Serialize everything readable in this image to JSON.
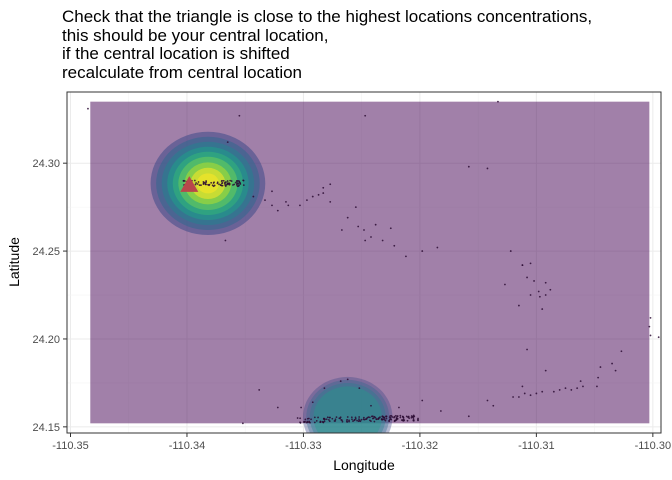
{
  "chart_data": {
    "type": "scatter",
    "title_lines": [
      "Check that the triangle is close to the highest locations concentrations,",
      "this should be your central location,",
      "if the central location is shifted",
      "recalculate from central location"
    ],
    "xlabel": "Longitude",
    "ylabel": "Latitude",
    "xlim": [
      -110.3503,
      -110.2993
    ],
    "ylim": [
      24.1465,
      24.3405
    ],
    "xticks": [
      -110.35,
      -110.34,
      -110.33,
      -110.32,
      -110.31,
      -110.3
    ],
    "xtick_labels": [
      "-110.35",
      "-110.34",
      "-110.33",
      "-110.32",
      "-110.31",
      "-110.30"
    ],
    "yticks": [
      24.15,
      24.2,
      24.25,
      24.3
    ],
    "ytick_labels": [
      "24.15",
      "24.20",
      "24.25",
      "24.30"
    ],
    "grid": true,
    "density_extent": {
      "x": [
        -110.3483,
        -110.3003
      ],
      "y": [
        24.152,
        24.335
      ]
    },
    "density_peaks": [
      {
        "x": -110.3382,
        "y": 24.2885,
        "strength": 1.0
      },
      {
        "x": -110.3262,
        "y": 24.1555,
        "strength": 0.45
      }
    ],
    "central_location": {
      "x": -110.3398,
      "y": 24.2875
    },
    "points": [
      [
        -110.3485,
        24.331
      ],
      [
        -110.3355,
        24.327
      ],
      [
        -110.3247,
        24.327
      ],
      [
        -110.3133,
        24.335
      ],
      [
        -110.3365,
        24.312
      ],
      [
        -110.3367,
        24.256
      ],
      [
        -110.3343,
        24.281
      ],
      [
        -110.3333,
        24.279
      ],
      [
        -110.3327,
        24.276
      ],
      [
        -110.3322,
        24.273
      ],
      [
        -110.3315,
        24.278
      ],
      [
        -110.3313,
        24.276
      ],
      [
        -110.3303,
        24.276
      ],
      [
        -110.3297,
        24.279
      ],
      [
        -110.3292,
        24.281
      ],
      [
        -110.3287,
        24.282
      ],
      [
        -110.3283,
        24.283
      ],
      [
        -110.3277,
        24.288
      ],
      [
        -110.3283,
        24.286
      ],
      [
        -110.3277,
        24.278
      ],
      [
        -110.3327,
        24.284
      ],
      [
        -110.3267,
        24.262
      ],
      [
        -110.3262,
        24.269
      ],
      [
        -110.3255,
        24.275
      ],
      [
        -110.3253,
        24.264
      ],
      [
        -110.3248,
        24.262
      ],
      [
        -110.3247,
        24.256
      ],
      [
        -110.3242,
        24.258
      ],
      [
        -110.3238,
        24.265
      ],
      [
        -110.3232,
        24.256
      ],
      [
        -110.3225,
        24.263
      ],
      [
        -110.3222,
        24.253
      ],
      [
        -110.3212,
        24.247
      ],
      [
        -110.3198,
        24.25
      ],
      [
        -110.3185,
        24.252
      ],
      [
        -110.3127,
        24.231
      ],
      [
        -110.3122,
        24.25
      ],
      [
        -110.3112,
        24.242
      ],
      [
        -110.3108,
        24.235
      ],
      [
        -110.3102,
        24.233
      ],
      [
        -110.3098,
        24.227
      ],
      [
        -110.3097,
        24.224
      ],
      [
        -110.3105,
        24.225
      ],
      [
        -110.3095,
        24.217
      ],
      [
        -110.3115,
        24.219
      ],
      [
        -110.3112,
        24.242
      ],
      [
        -110.3105,
        24.243
      ],
      [
        -110.3092,
        24.232
      ],
      [
        -110.3092,
        24.225
      ],
      [
        -110.3088,
        24.228
      ],
      [
        -110.3158,
        24.298
      ],
      [
        -110.3142,
        24.297
      ],
      [
        -110.3002,
        24.212
      ],
      [
        -110.3003,
        24.207
      ],
      [
        -110.3002,
        24.202
      ],
      [
        -110.2995,
        24.201
      ],
      [
        -110.3027,
        24.193
      ],
      [
        -110.3035,
        24.186
      ],
      [
        -110.3045,
        24.184
      ],
      [
        -110.3032,
        24.182
      ],
      [
        -110.3047,
        24.178
      ],
      [
        -110.3062,
        24.176
      ],
      [
        -110.3048,
        24.173
      ],
      [
        -110.3092,
        24.182
      ],
      [
        -110.3108,
        24.194
      ],
      [
        -110.3112,
        24.173
      ],
      [
        -110.3137,
        24.162
      ],
      [
        -110.3158,
        24.156
      ],
      [
        -110.3182,
        24.159
      ],
      [
        -110.3198,
        24.165
      ],
      [
        -110.3218,
        24.161
      ],
      [
        -110.3232,
        24.156
      ],
      [
        -110.3242,
        24.162
      ],
      [
        -110.3252,
        24.172
      ],
      [
        -110.3262,
        24.177
      ],
      [
        -110.3268,
        24.176
      ],
      [
        -110.3282,
        24.172
      ],
      [
        -110.3292,
        24.164
      ],
      [
        -110.3302,
        24.161
      ],
      [
        -110.3322,
        24.161
      ],
      [
        -110.3338,
        24.171
      ],
      [
        -110.3352,
        24.152
      ],
      [
        -110.3142,
        24.165
      ],
      [
        -110.3305,
        24.155
      ],
      [
        -110.3085,
        24.17
      ],
      [
        -110.308,
        24.171
      ],
      [
        -110.3075,
        24.172
      ],
      [
        -110.307,
        24.171
      ],
      [
        -110.3065,
        24.172
      ],
      [
        -110.306,
        24.173
      ],
      [
        -110.3095,
        24.17
      ],
      [
        -110.31,
        24.169
      ],
      [
        -110.3105,
        24.168
      ],
      [
        -110.311,
        24.169
      ],
      [
        -110.3115,
        24.167
      ],
      [
        -110.312,
        24.167
      ]
    ]
  }
}
